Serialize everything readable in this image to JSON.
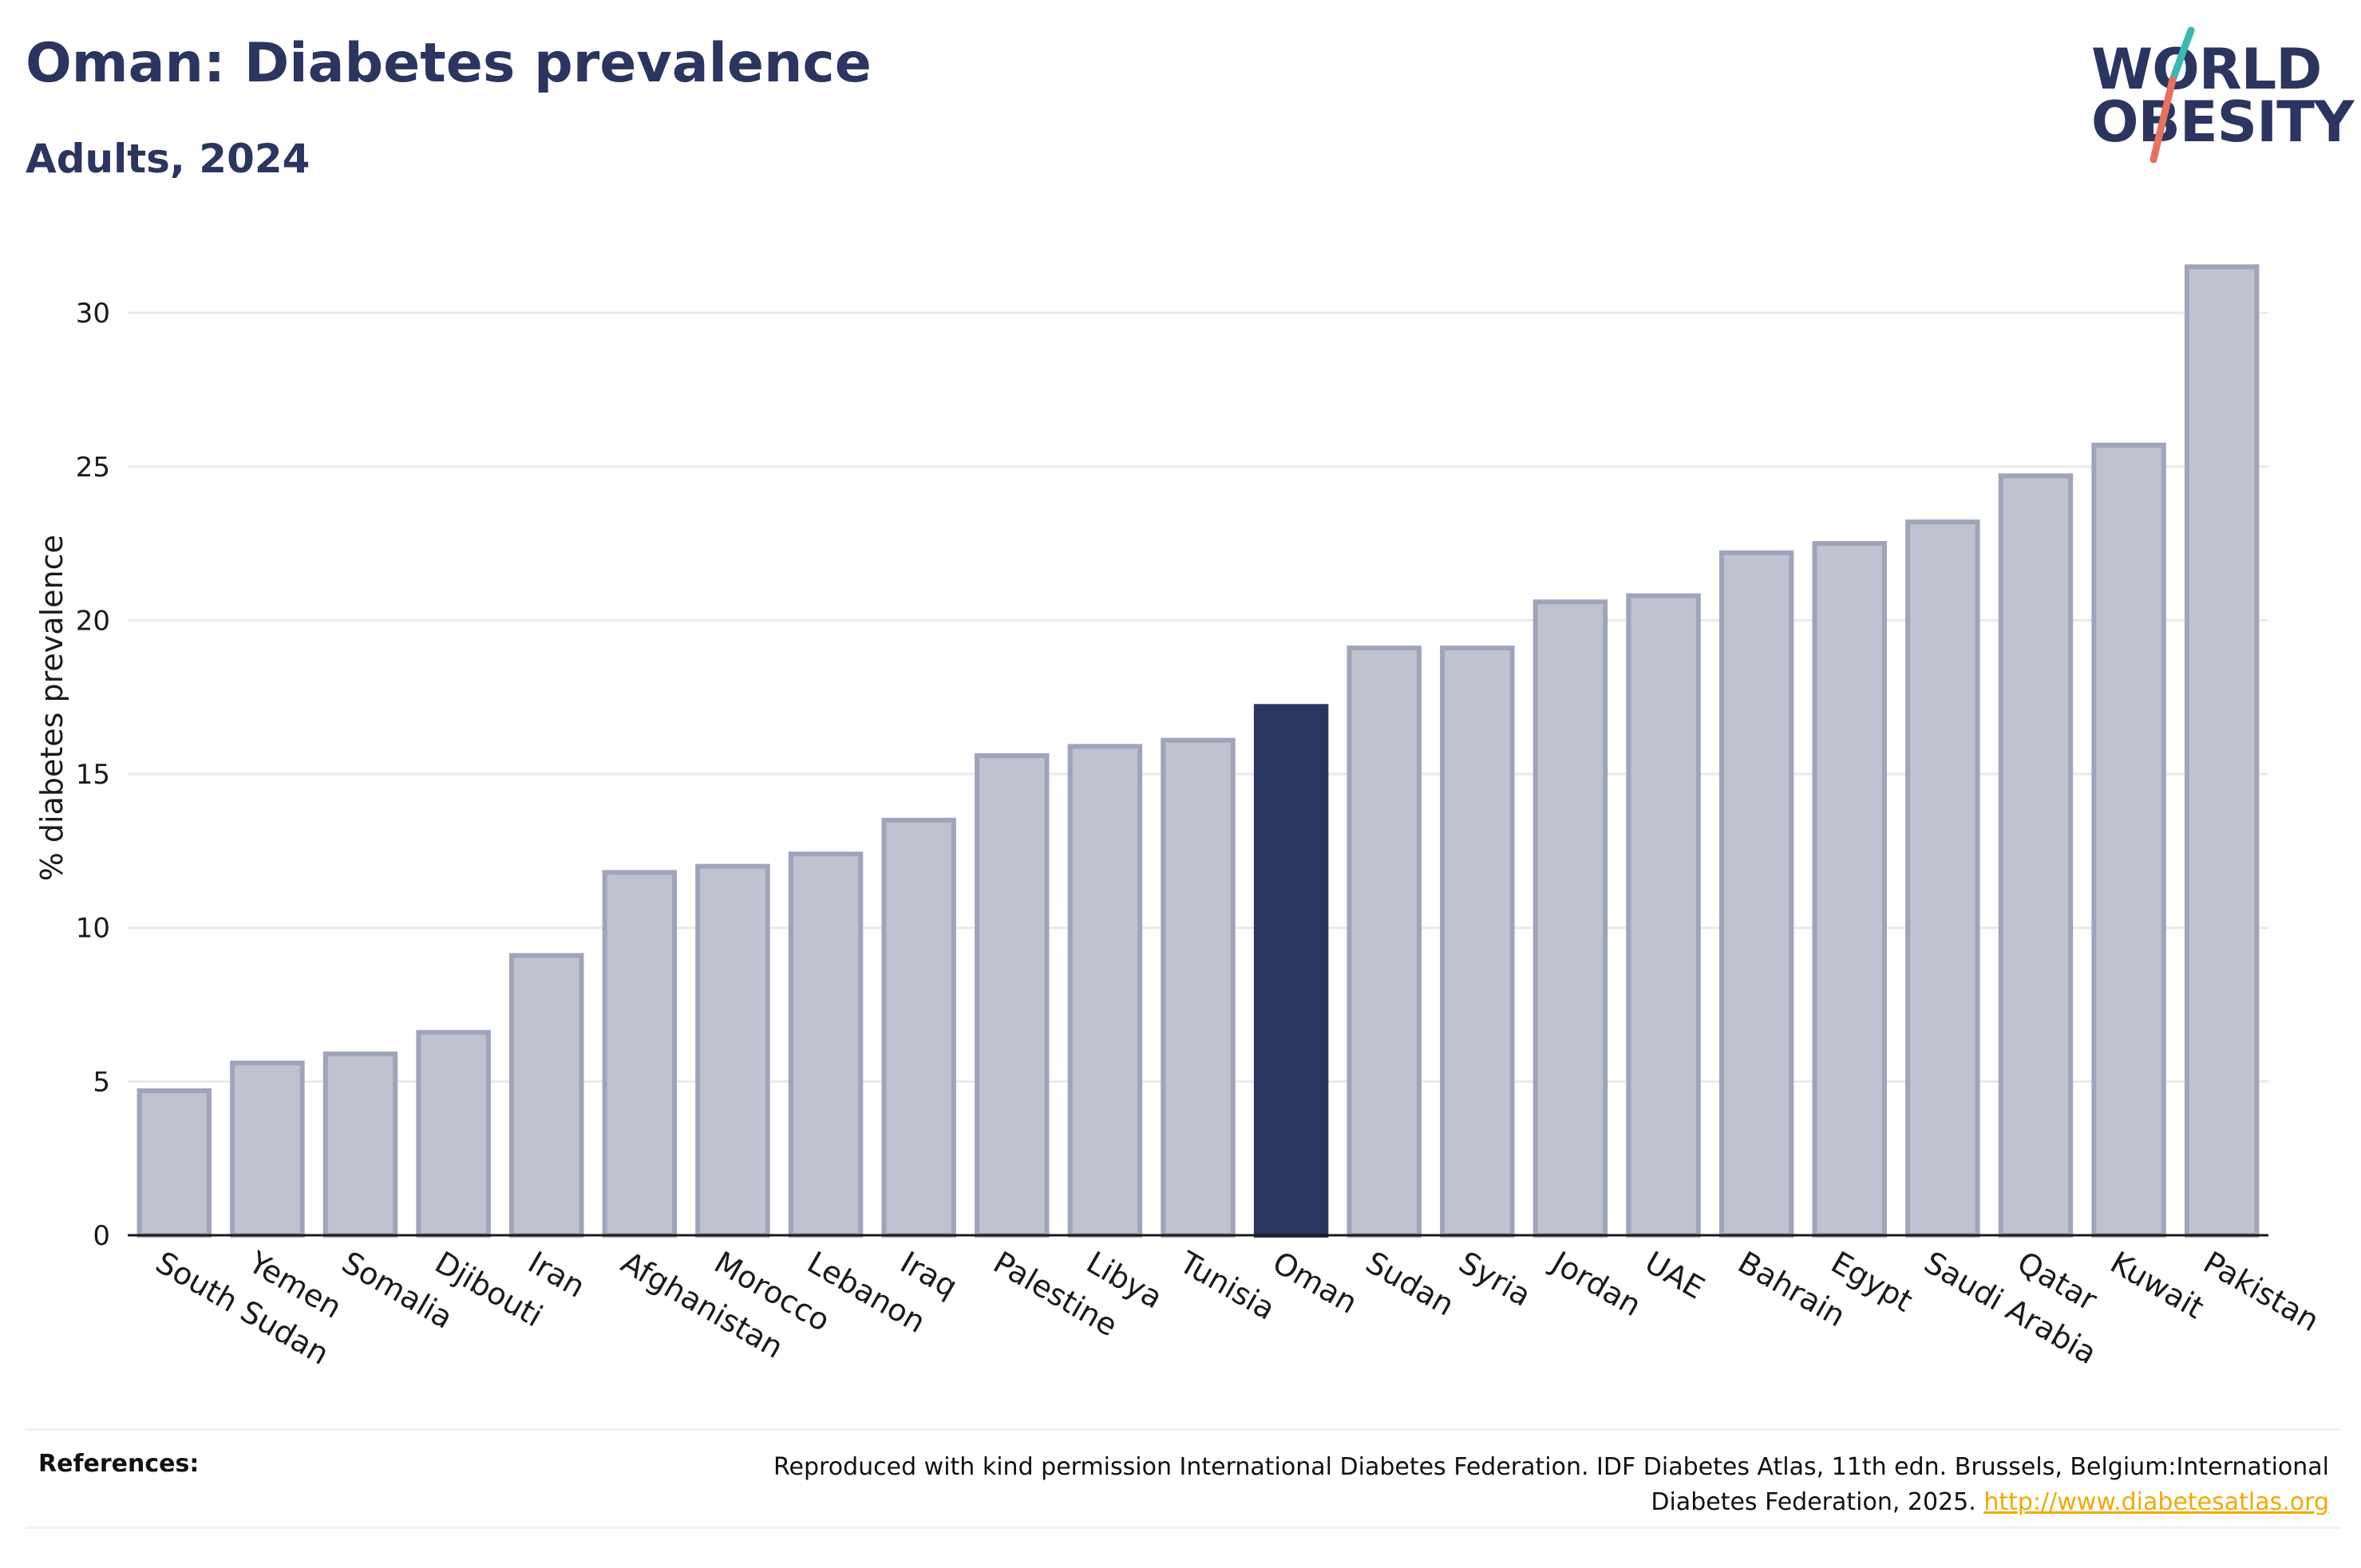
{
  "header": {
    "title": "Oman: Diabetes prevalence",
    "subtitle": "Adults, 2024"
  },
  "logo": {
    "line1": "WORLD",
    "line2": "OBESITY"
  },
  "chart_data": {
    "type": "bar",
    "title": "Oman: Diabetes prevalence",
    "subtitle": "Adults, 2024",
    "xlabel": "",
    "ylabel": "% diabetes prevalence",
    "ylim": [
      0,
      32.5
    ],
    "yticks": [
      0,
      5,
      10,
      15,
      20,
      25,
      30
    ],
    "grid": true,
    "categories": [
      "South Sudan",
      "Yemen",
      "Somalia",
      "Djibouti",
      "Iran",
      "Afghanistan",
      "Morocco",
      "Lebanon",
      "Iraq",
      "Palestine",
      "Libya",
      "Tunisia",
      "Oman",
      "Sudan",
      "Syria",
      "Jordan",
      "UAE",
      "Bahrain",
      "Egypt",
      "Saudi Arabia",
      "Qatar",
      "Kuwait",
      "Pakistan"
    ],
    "values": [
      4.7,
      5.6,
      5.9,
      6.6,
      9.1,
      11.8,
      12.0,
      12.4,
      13.5,
      15.6,
      15.9,
      16.1,
      17.2,
      19.1,
      19.1,
      20.6,
      20.8,
      22.2,
      22.5,
      23.2,
      24.7,
      25.7,
      31.5
    ],
    "highlight": "Oman",
    "colors": {
      "highlight": "#2a3560",
      "default_fill": "#bfc2cf",
      "default_stroke": "#9fa4ba",
      "grid": "#e8e9ee",
      "axis": "#1a1a1a"
    }
  },
  "footer": {
    "label": "References:",
    "text": "Reproduced with kind permission International Diabetes Federation. IDF Diabetes Atlas, 11th edn. Brussels, Belgium:International Diabetes Federation, 2025.",
    "link": "http://www.diabetesatlas.org"
  }
}
